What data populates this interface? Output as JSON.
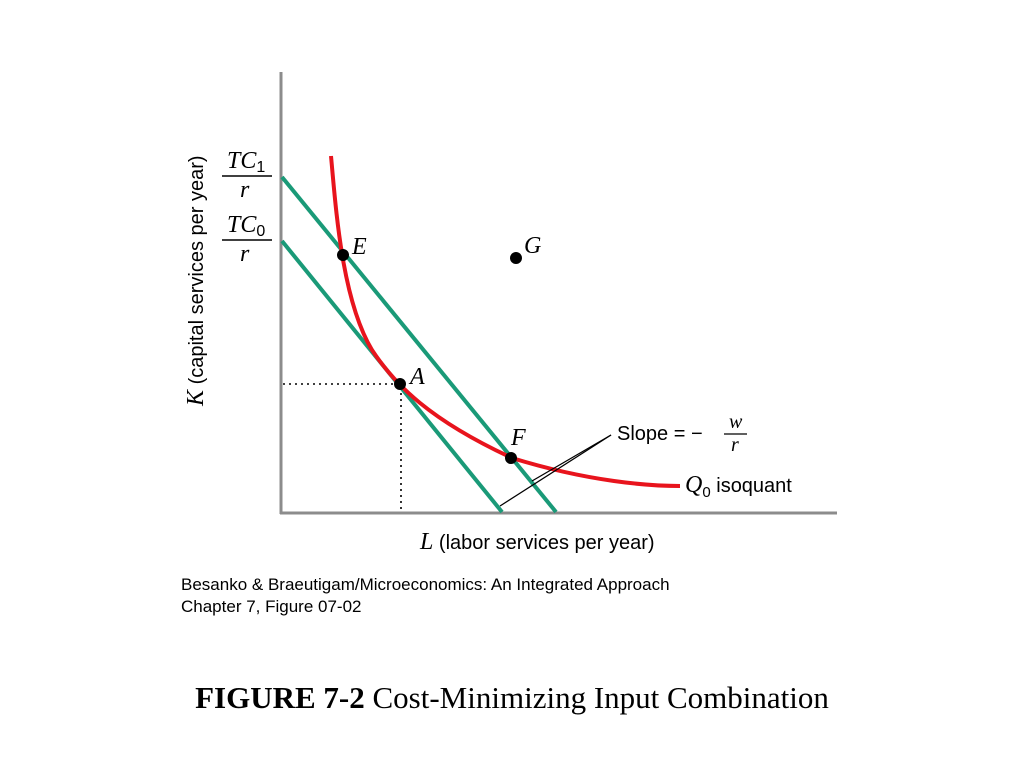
{
  "figure": {
    "y_axis_label_var": "K",
    "y_axis_label_text": " (capital services per year)",
    "x_axis_label_var": "L",
    "x_axis_label_text": " (labor services per year)",
    "tc1_num_base": "TC",
    "tc1_num_sub": "1",
    "tc1_den": "r",
    "tc0_num_base": "TC",
    "tc0_num_sub": "0",
    "tc0_den": "r",
    "points": {
      "E": "E",
      "G": "G",
      "A": "A",
      "F": "F"
    },
    "slope_label": "Slope = −",
    "slope_num": "w",
    "slope_den": "r",
    "isoquant_var": "Q",
    "isoquant_sub": "0",
    "isoquant_text": " isoquant",
    "colors": {
      "isoquant": "#e8141d",
      "isocost": "#1a9a78",
      "axis": "#8c8c8c",
      "dots": "#000000"
    }
  },
  "caption": {
    "line1": "Besanko & Braeutigam/Microeconomics: An Integrated Approach",
    "line2": "Chapter 7, Figure 07-02"
  },
  "title": {
    "bold": "FIGURE 7-2",
    "rest": " Cost-Minimizing Input Combination"
  }
}
